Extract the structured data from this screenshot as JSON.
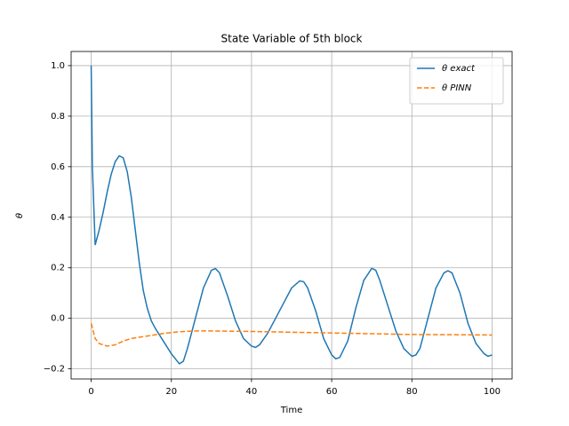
{
  "chart_data": {
    "type": "line",
    "title": "State Variable of 5th block",
    "xlabel": "Time",
    "ylabel": "θ",
    "xlim": [
      -5,
      105
    ],
    "ylim": [
      -0.24,
      1.056
    ],
    "xticks": [
      0,
      20,
      40,
      60,
      80,
      100
    ],
    "yticks": [
      {
        "value": -0.2,
        "label": "−0.2"
      },
      {
        "value": 0,
        "label": "0.0"
      },
      0.2,
      0.4,
      0.6,
      0.8,
      {
        "value": 1,
        "label": "1.0"
      }
    ],
    "grid": true,
    "legend": "upper right",
    "series": [
      {
        "name": "θ exact",
        "color": "#1f77b4",
        "dash": "solid",
        "x": [
          0,
          0.3,
          1,
          2,
          3,
          4,
          5,
          6,
          7,
          8,
          9,
          10,
          11,
          12,
          13,
          14,
          15,
          16,
          18,
          20,
          22,
          23,
          24,
          26,
          28,
          30,
          31,
          32,
          34,
          36,
          38,
          40,
          41,
          42,
          44,
          46,
          48,
          50,
          52,
          53,
          54,
          56,
          58,
          60,
          61,
          62,
          64,
          66,
          68,
          70,
          71,
          72,
          74,
          76,
          78,
          80,
          81,
          82,
          84,
          86,
          88,
          89,
          90,
          92,
          94,
          96,
          98,
          99,
          100
        ],
        "values": [
          1.0,
          0.6,
          0.29,
          0.35,
          0.42,
          0.5,
          0.57,
          0.62,
          0.643,
          0.635,
          0.58,
          0.48,
          0.35,
          0.22,
          0.11,
          0.04,
          -0.01,
          -0.04,
          -0.09,
          -0.14,
          -0.18,
          -0.17,
          -0.12,
          0.0,
          0.12,
          0.19,
          0.197,
          0.18,
          0.09,
          -0.01,
          -0.08,
          -0.11,
          -0.115,
          -0.105,
          -0.06,
          0.0,
          0.06,
          0.12,
          0.148,
          0.145,
          0.12,
          0.03,
          -0.08,
          -0.145,
          -0.16,
          -0.155,
          -0.09,
          0.04,
          0.15,
          0.198,
          0.19,
          0.15,
          0.05,
          -0.05,
          -0.12,
          -0.15,
          -0.145,
          -0.12,
          0.0,
          0.12,
          0.18,
          0.188,
          0.18,
          0.1,
          -0.02,
          -0.1,
          -0.14,
          -0.15,
          -0.145
        ]
      },
      {
        "name": "θ PINN",
        "color": "#ff7f0e",
        "dash": "dashed",
        "x": [
          0,
          1,
          2,
          4,
          6,
          8,
          10,
          14,
          18,
          22,
          26,
          30,
          40,
          50,
          60,
          70,
          80,
          90,
          100
        ],
        "values": [
          -0.02,
          -0.08,
          -0.1,
          -0.11,
          -0.105,
          -0.09,
          -0.08,
          -0.07,
          -0.06,
          -0.053,
          -0.05,
          -0.05,
          -0.052,
          -0.055,
          -0.058,
          -0.061,
          -0.064,
          -0.065,
          -0.066
        ]
      }
    ]
  }
}
